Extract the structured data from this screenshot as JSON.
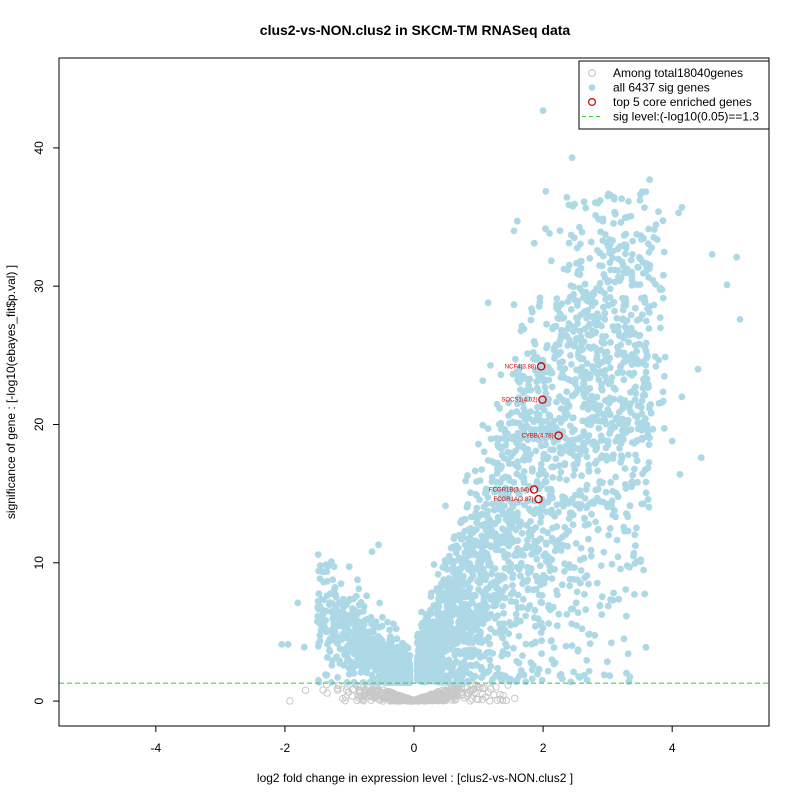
{
  "chart_data": {
    "type": "scatter",
    "title": "clus2-vs-NON.clus2 in SKCM-TM RNASeq data",
    "xlabel": "log2 fold change in expression level : [clus2-vs-NON.clus2 ]",
    "ylabel": "significance of gene : [-log10(ebayes_fit$p.val) ]",
    "xlim": [
      -5.5,
      5.5
    ],
    "ylim": [
      -1.8,
      46.5
    ],
    "x_ticks": [
      -4,
      -2,
      0,
      2,
      4
    ],
    "y_ticks": [
      0,
      10,
      20,
      30,
      40
    ],
    "grid": false,
    "legend_position": "top-right",
    "legend": [
      {
        "label": "Among total18040genes",
        "symbol": "open-circle",
        "color": "#c8c8c8"
      },
      {
        "label": "all 6437 sig genes",
        "symbol": "filled-circle",
        "color": "#add8e6"
      },
      {
        "label": "top 5 core enriched genes",
        "symbol": "open-circle",
        "color": "#cc0000"
      },
      {
        "label": "sig level:(-log10(0.05)==1.3",
        "symbol": "dashed-line",
        "color": "#33cc33"
      }
    ],
    "sig_level": 1.3,
    "colors": {
      "nonsig": "#c8c8c8",
      "sig": "#add8e6",
      "top": "#cc0000",
      "threshold": "#33cc33"
    },
    "top_genes": [
      {
        "label": "NCF4(3.88)",
        "x": 1.97,
        "y": 24.2
      },
      {
        "label": "SOCS1(4.02)",
        "x": 1.99,
        "y": 21.8
      },
      {
        "label": "CYBB(4.78)",
        "x": 2.24,
        "y": 19.2
      },
      {
        "label": "FCGR1B(3.64)",
        "x": 1.86,
        "y": 15.3
      },
      {
        "label": "FCGR1A(3.87)",
        "x": 1.93,
        "y": 14.6
      }
    ],
    "sig_outliers": [
      {
        "x": 2.0,
        "y": 42.7
      },
      {
        "x": 2.45,
        "y": 39.3
      },
      {
        "x": 3.65,
        "y": 37.7
      },
      {
        "x": 4.15,
        "y": 35.7
      },
      {
        "x": 4.1,
        "y": 35.3
      },
      {
        "x": 4.62,
        "y": 32.3
      },
      {
        "x": 5.0,
        "y": 32.1
      },
      {
        "x": 4.85,
        "y": 30.1
      },
      {
        "x": 5.05,
        "y": 27.6
      },
      {
        "x": 4.4,
        "y": 24.0
      },
      {
        "x": 4.15,
        "y": 22.0
      },
      {
        "x": 4.0,
        "y": 18.8
      },
      {
        "x": 4.45,
        "y": 17.6
      },
      {
        "x": 4.12,
        "y": 16.4
      },
      {
        "x": 2.9,
        "y": 9.8
      },
      {
        "x": 2.5,
        "y": 14.2
      },
      {
        "x": -0.55,
        "y": 11.3
      },
      {
        "x": -0.65,
        "y": 10.8
      },
      {
        "x": -1.4,
        "y": 8.6
      },
      {
        "x": -1.8,
        "y": 7.1
      },
      {
        "x": -1.95,
        "y": 4.1
      },
      {
        "x": -2.05,
        "y": 4.1
      },
      {
        "x": -1.7,
        "y": 3.9
      },
      {
        "x": -1.3,
        "y": 4.5
      },
      {
        "x": 1.15,
        "y": 28.8
      },
      {
        "x": 1.55,
        "y": 34.0
      },
      {
        "x": 1.6,
        "y": 34.7
      }
    ]
  }
}
